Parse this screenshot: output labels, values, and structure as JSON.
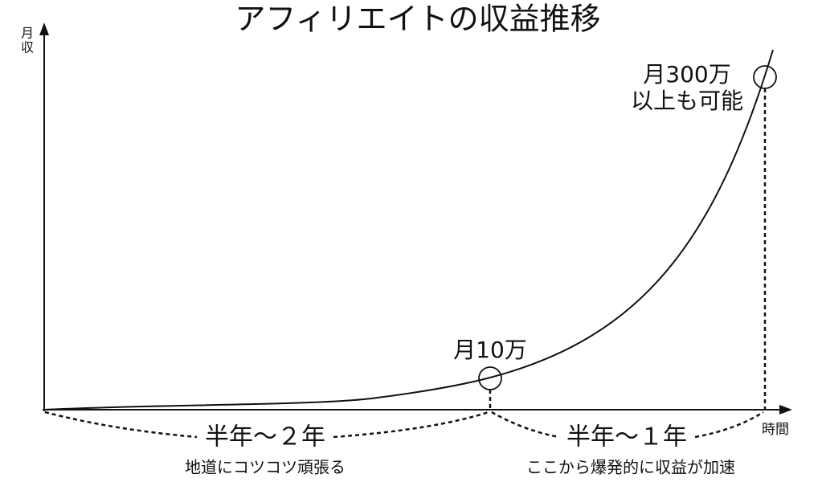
{
  "title": "アフィリエイトの収益推移",
  "axes": {
    "y_label": [
      "月",
      "収"
    ],
    "x_label": "時間"
  },
  "milestones": [
    {
      "label": "月10万"
    },
    {
      "lines": [
        "月300万",
        "以上も可能"
      ]
    }
  ],
  "phases": [
    {
      "period": "半年～２年",
      "description": "地道にコツコツ頑張る"
    },
    {
      "period": "半年～１年",
      "description": "ここから爆発的に収益が加速"
    }
  ]
}
